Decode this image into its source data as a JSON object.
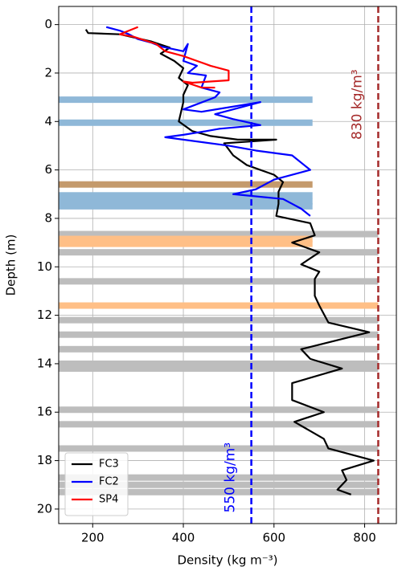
{
  "chart_data": {
    "type": "line",
    "xlabel": "Density (kg m⁻³)",
    "ylabel": "Depth (m)",
    "xlim": [
      125,
      870
    ],
    "ylim": [
      -0.75,
      20.6
    ],
    "y_inverted": true,
    "xticks": [
      200,
      400,
      600,
      800
    ],
    "yticks": [
      0,
      2,
      4,
      6,
      8,
      10,
      12,
      14,
      16,
      18,
      20
    ],
    "grid": true,
    "legend": "lower left",
    "series": [
      {
        "name": "FC3",
        "color": "#000000",
        "x": [
          185,
          190,
          260,
          330,
          370,
          350,
          380,
          400,
          390,
          410,
          400,
          400,
          395,
          390,
          420,
          460,
          520,
          605,
          490,
          510,
          540,
          600,
          620,
          610,
          610,
          605,
          680,
          690,
          640,
          700,
          660,
          700,
          690,
          690,
          700,
          720,
          810,
          660,
          680,
          750,
          640,
          640,
          710,
          645,
          710,
          720,
          820,
          750,
          760,
          740,
          770
        ],
        "y": [
          0.2,
          0.35,
          0.4,
          0.7,
          0.95,
          1.2,
          1.5,
          1.8,
          2.2,
          2.5,
          2.9,
          3.2,
          3.6,
          4.0,
          4.4,
          4.6,
          4.75,
          4.75,
          4.9,
          5.4,
          5.8,
          6.2,
          6.5,
          6.9,
          7.4,
          7.9,
          8.2,
          8.7,
          9.0,
          9.4,
          9.9,
          10.2,
          10.5,
          11.2,
          11.6,
          12.3,
          12.7,
          13.4,
          13.8,
          14.2,
          14.8,
          15.5,
          16.0,
          16.4,
          17.1,
          17.5,
          18.0,
          18.4,
          18.8,
          19.2,
          19.4
        ]
      },
      {
        "name": "FC2",
        "color": "#0000ff",
        "x": [
          230,
          260,
          280,
          300,
          330,
          350,
          400,
          410,
          400,
          430,
          410,
          450,
          440,
          480,
          470,
          400,
          440,
          570,
          470,
          510,
          570,
          480,
          450,
          400,
          360,
          500,
          560,
          640,
          680,
          600,
          560,
          510,
          620,
          640,
          660,
          680
        ],
        "y": [
          0.1,
          0.25,
          0.4,
          0.6,
          0.75,
          0.9,
          1.1,
          0.8,
          1.5,
          1.7,
          2.0,
          2.1,
          2.6,
          2.8,
          3.0,
          3.5,
          3.6,
          3.2,
          3.7,
          3.9,
          4.15,
          4.3,
          4.4,
          4.55,
          4.65,
          5.0,
          5.2,
          5.4,
          6.0,
          6.4,
          6.8,
          7.0,
          7.2,
          7.4,
          7.6,
          7.9
        ]
      },
      {
        "name": "SP4",
        "color": "#ff0000",
        "x": [
          300,
          280,
          260,
          290,
          340,
          360,
          400,
          430,
          460,
          500,
          500,
          420,
          400,
          440,
          470
        ],
        "y": [
          0.1,
          0.25,
          0.4,
          0.5,
          0.8,
          1.1,
          1.3,
          1.5,
          1.7,
          1.9,
          2.3,
          2.4,
          2.35,
          2.6,
          2.6
        ]
      }
    ],
    "bands": [
      {
        "depth": 3.1,
        "end": 685,
        "color": "#8fb8d8"
      },
      {
        "depth": 4.05,
        "end": 685,
        "color": "#8fb8d8"
      },
      {
        "depth": 6.6,
        "end": 685,
        "color": "#c49a6c"
      },
      {
        "depth": 7.05,
        "end": 685,
        "color": "#8fb8d8"
      },
      {
        "depth": 7.3,
        "end": 685,
        "color": "#8fb8d8"
      },
      {
        "depth": 7.5,
        "end": 685,
        "color": "#8fb8d8"
      },
      {
        "depth": 8.65,
        "end": 830,
        "color": "#bdbdbd"
      },
      {
        "depth": 8.85,
        "end": 685,
        "color": "#ffbf86"
      },
      {
        "depth": 9.05,
        "end": 685,
        "color": "#ffbf86"
      },
      {
        "depth": 9.4,
        "end": 830,
        "color": "#bdbdbd"
      },
      {
        "depth": 10.6,
        "end": 830,
        "color": "#bdbdbd"
      },
      {
        "depth": 11.6,
        "end": 830,
        "color": "#ffbf86"
      },
      {
        "depth": 12.2,
        "end": 830,
        "color": "#bdbdbd"
      },
      {
        "depth": 12.8,
        "end": 830,
        "color": "#bdbdbd"
      },
      {
        "depth": 13.4,
        "end": 830,
        "color": "#bdbdbd"
      },
      {
        "depth": 14.0,
        "end": 830,
        "color": "#bdbdbd"
      },
      {
        "depth": 14.2,
        "end": 830,
        "color": "#bdbdbd"
      },
      {
        "depth": 15.9,
        "end": 830,
        "color": "#bdbdbd"
      },
      {
        "depth": 16.5,
        "end": 830,
        "color": "#bdbdbd"
      },
      {
        "depth": 17.5,
        "end": 830,
        "color": "#bdbdbd"
      },
      {
        "depth": 18.7,
        "end": 830,
        "color": "#bdbdbd"
      },
      {
        "depth": 19.0,
        "end": 830,
        "color": "#bdbdbd"
      },
      {
        "depth": 19.3,
        "end": 830,
        "color": "#bdbdbd"
      }
    ],
    "vlines": [
      {
        "value": 550,
        "label": "550 kg/m³",
        "color": "#0000ff",
        "label_depth": 18.7
      },
      {
        "value": 830,
        "label": "830 kg/m³",
        "color": "#a52a2a",
        "label_depth": 3.3
      }
    ]
  }
}
